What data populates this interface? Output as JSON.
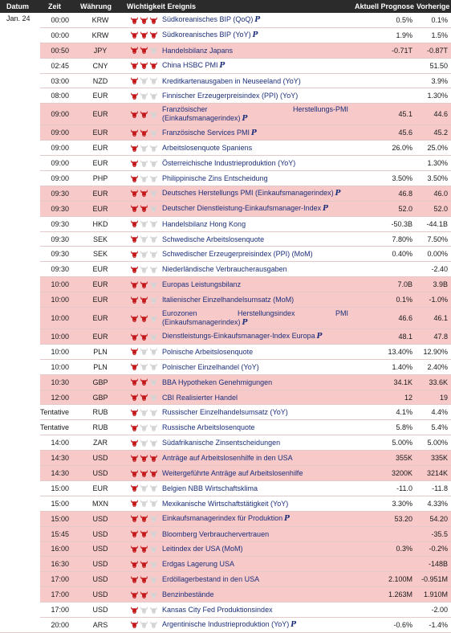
{
  "headers": {
    "date": "Datum",
    "time": "Zeit",
    "currency": "Währung",
    "importance": "Wichtigkeit",
    "event": "Ereignis",
    "actual": "Aktuell",
    "forecast": "Prognose",
    "previous": "Vorherige"
  },
  "date_label": "Jan. 24",
  "colors": {
    "bull_active": "#c4191b",
    "bull_inactive": "#d3d3d3",
    "highlight_row": "#f7c9c9",
    "event_text": "#1c2f7a"
  },
  "preliminary_icon": "𝙋",
  "events": [
    {
      "time": "00:00",
      "cur": "KRW",
      "imp": 3,
      "name": "Südkoreanisches BIP (QoQ)",
      "p": true,
      "act": "",
      "fc": "0.5%",
      "prev": "0.1%",
      "hl": false
    },
    {
      "time": "00:00",
      "cur": "KRW",
      "imp": 3,
      "name": "Südkoreanisches BIP (YoY)",
      "p": true,
      "act": "",
      "fc": "1.9%",
      "prev": "1.5%",
      "hl": false
    },
    {
      "time": "00:50",
      "cur": "JPY",
      "imp": 2,
      "name": "Handelsbilanz Japans",
      "p": false,
      "act": "",
      "fc": "-0.71T",
      "prev": "-0.87T",
      "hl": true
    },
    {
      "time": "02:45",
      "cur": "CNY",
      "imp": 3,
      "name": "China HSBC PMI",
      "p": true,
      "act": "",
      "fc": "",
      "prev": "51.50",
      "hl": false
    },
    {
      "time": "03:00",
      "cur": "NZD",
      "imp": 1,
      "name": "Kreditkartenausgaben in Neuseeland (YoY)",
      "p": false,
      "act": "",
      "fc": "",
      "prev": "3.9%",
      "hl": false
    },
    {
      "time": "08:00",
      "cur": "EUR",
      "imp": 1,
      "name": "Finnischer Erzeugerpreisindex (PPI) (YoY)",
      "p": false,
      "act": "",
      "fc": "",
      "prev": "1.30%",
      "hl": false
    },
    {
      "time": "09:00",
      "cur": "EUR",
      "imp": 2,
      "name": "Französischer Herstellungs-PMI (Einkaufsmanagerindex)",
      "p": true,
      "act": "",
      "fc": "45.1",
      "prev": "44.6",
      "hl": true,
      "tall": true
    },
    {
      "time": "09:00",
      "cur": "EUR",
      "imp": 2,
      "name": "Französische Services PMI",
      "p": true,
      "act": "",
      "fc": "45.6",
      "prev": "45.2",
      "hl": true
    },
    {
      "time": "09:00",
      "cur": "EUR",
      "imp": 1,
      "name": "Arbeitslosenquote Spaniens",
      "p": false,
      "act": "",
      "fc": "26.0%",
      "prev": "25.0%",
      "hl": false
    },
    {
      "time": "09:00",
      "cur": "EUR",
      "imp": 1,
      "name": "Österreichische Industrieproduktion (YoY)",
      "p": false,
      "act": "",
      "fc": "",
      "prev": "1.30%",
      "hl": false
    },
    {
      "time": "09:00",
      "cur": "PHP",
      "imp": 1,
      "name": "Philippinische Zins Entscheidung",
      "p": false,
      "act": "",
      "fc": "3.50%",
      "prev": "3.50%",
      "hl": false
    },
    {
      "time": "09:30",
      "cur": "EUR",
      "imp": 2,
      "name": "Deutsches Herstellungs PMI (Einkaufsmanagerindex)",
      "p": true,
      "act": "",
      "fc": "46.8",
      "prev": "46.0",
      "hl": true
    },
    {
      "time": "09:30",
      "cur": "EUR",
      "imp": 2,
      "name": "Deutscher Dienstleistung-Einkaufsmanager-Index",
      "p": true,
      "act": "",
      "fc": "52.0",
      "prev": "52.0",
      "hl": true
    },
    {
      "time": "09:30",
      "cur": "HKD",
      "imp": 1,
      "name": "Handelsbilanz Hong Kong",
      "p": false,
      "act": "",
      "fc": "-50.3B",
      "prev": "-44.1B",
      "hl": false
    },
    {
      "time": "09:30",
      "cur": "SEK",
      "imp": 1,
      "name": "Schwedische Arbeitslosenquote",
      "p": false,
      "act": "",
      "fc": "7.80%",
      "prev": "7.50%",
      "hl": false
    },
    {
      "time": "09:30",
      "cur": "SEK",
      "imp": 1,
      "name": "Schwedischer Erzeugerpreisindex (PPI) (MoM)",
      "p": false,
      "act": "",
      "fc": "0.40%",
      "prev": "0.00%",
      "hl": false
    },
    {
      "time": "09:30",
      "cur": "EUR",
      "imp": 1,
      "name": "Niederländische Verbraucherausgaben",
      "p": false,
      "act": "",
      "fc": "",
      "prev": "-2.40",
      "hl": false
    },
    {
      "time": "10:00",
      "cur": "EUR",
      "imp": 2,
      "name": "Europas Leistungsbilanz",
      "p": false,
      "act": "",
      "fc": "7.0B",
      "prev": "3.9B",
      "hl": true
    },
    {
      "time": "10:00",
      "cur": "EUR",
      "imp": 2,
      "name": "Italienischer Einzelhandelsumsatz (MoM)",
      "p": false,
      "act": "",
      "fc": "0.1%",
      "prev": "-1.0%",
      "hl": true
    },
    {
      "time": "10:00",
      "cur": "EUR",
      "imp": 2,
      "name": "Eurozonen Herstellungsindex PMI (Einkaufsmanagerindex)",
      "p": true,
      "act": "",
      "fc": "46.6",
      "prev": "46.1",
      "hl": true,
      "tall": true
    },
    {
      "time": "10:00",
      "cur": "EUR",
      "imp": 2,
      "name": "Dienstleistungs-Einkaufsmanager-Index Europa",
      "p": true,
      "act": "",
      "fc": "48.1",
      "prev": "47.8",
      "hl": true
    },
    {
      "time": "10:00",
      "cur": "PLN",
      "imp": 1,
      "name": "Polnische Arbeitslosenquote",
      "p": false,
      "act": "",
      "fc": "13.40%",
      "prev": "12.90%",
      "hl": false
    },
    {
      "time": "10:00",
      "cur": "PLN",
      "imp": 1,
      "name": "Polnischer Einzelhandel (YoY)",
      "p": false,
      "act": "",
      "fc": "1.40%",
      "prev": "2.40%",
      "hl": false
    },
    {
      "time": "10:30",
      "cur": "GBP",
      "imp": 2,
      "name": "BBA Hypotheken Genehmigungen",
      "p": false,
      "act": "",
      "fc": "34.1K",
      "prev": "33.6K",
      "hl": true
    },
    {
      "time": "12:00",
      "cur": "GBP",
      "imp": 2,
      "name": "CBI Realisierter Handel",
      "p": false,
      "act": "",
      "fc": "12",
      "prev": "19",
      "hl": true
    },
    {
      "time": "Tentative",
      "cur": "RUB",
      "imp": 1,
      "name": "Russischer Einzelhandelsumsatz (YoY)",
      "p": false,
      "act": "",
      "fc": "4.1%",
      "prev": "4.4%",
      "hl": false
    },
    {
      "time": "Tentative",
      "cur": "RUB",
      "imp": 1,
      "name": "Russische Arbeitslosenquote",
      "p": false,
      "act": "",
      "fc": "5.8%",
      "prev": "5.4%",
      "hl": false
    },
    {
      "time": "14:00",
      "cur": "ZAR",
      "imp": 1,
      "name": "Südafrikanische Zinsentscheidungen",
      "p": false,
      "act": "",
      "fc": "5.00%",
      "prev": "5.00%",
      "hl": false
    },
    {
      "time": "14:30",
      "cur": "USD",
      "imp": 3,
      "name": "Anträge auf Arbeitslosenhilfe in den USA",
      "p": false,
      "act": "",
      "fc": "355K",
      "prev": "335K",
      "hl": true
    },
    {
      "time": "14:30",
      "cur": "USD",
      "imp": 3,
      "name": "Weitergeführte Anträge auf Arbeitslosenhilfe",
      "p": false,
      "act": "",
      "fc": "3200K",
      "prev": "3214K",
      "hl": true
    },
    {
      "time": "15:00",
      "cur": "EUR",
      "imp": 1,
      "name": "Belgien NBB Wirtschaftsklima",
      "p": false,
      "act": "",
      "fc": "-11.0",
      "prev": "-11.8",
      "hl": false
    },
    {
      "time": "15:00",
      "cur": "MXN",
      "imp": 1,
      "name": "Mexikanische Wirtschaftstätigkeit (YoY)",
      "p": false,
      "act": "",
      "fc": "3.30%",
      "prev": "4.33%",
      "hl": false
    },
    {
      "time": "15:00",
      "cur": "USD",
      "imp": 2,
      "name": "Einkaufsmanagerindex für Produktion",
      "p": true,
      "act": "",
      "fc": "53.20",
      "prev": "54.20",
      "hl": true
    },
    {
      "time": "15:45",
      "cur": "USD",
      "imp": 2,
      "name": "Bloomberg Verbrauchervertrauen",
      "p": false,
      "act": "",
      "fc": "",
      "prev": "-35.5",
      "hl": true
    },
    {
      "time": "16:00",
      "cur": "USD",
      "imp": 2,
      "name": "Leitindex der USA (MoM)",
      "p": false,
      "act": "",
      "fc": "0.3%",
      "prev": "-0.2%",
      "hl": true
    },
    {
      "time": "16:30",
      "cur": "USD",
      "imp": 2,
      "name": "Erdgas Lagerung USA",
      "p": false,
      "act": "",
      "fc": "",
      "prev": "-148B",
      "hl": true
    },
    {
      "time": "17:00",
      "cur": "USD",
      "imp": 2,
      "name": "Erdöllagerbestand in den USA",
      "p": false,
      "act": "",
      "fc": "2.100M",
      "prev": "-0.951M",
      "hl": true
    },
    {
      "time": "17:00",
      "cur": "USD",
      "imp": 2,
      "name": "Benzinbestände",
      "p": false,
      "act": "",
      "fc": "1.263M",
      "prev": "1.910M",
      "hl": true
    },
    {
      "time": "17:00",
      "cur": "USD",
      "imp": 1,
      "name": "Kansas City Fed Produktionsindex",
      "p": false,
      "act": "",
      "fc": "",
      "prev": "-2.00",
      "hl": false
    },
    {
      "time": "20:00",
      "cur": "ARS",
      "imp": 1,
      "name": "Argentinische Industrieproduktion (YoY)",
      "p": true,
      "act": "",
      "fc": "-0.6%",
      "prev": "-1.4%",
      "hl": false
    }
  ]
}
